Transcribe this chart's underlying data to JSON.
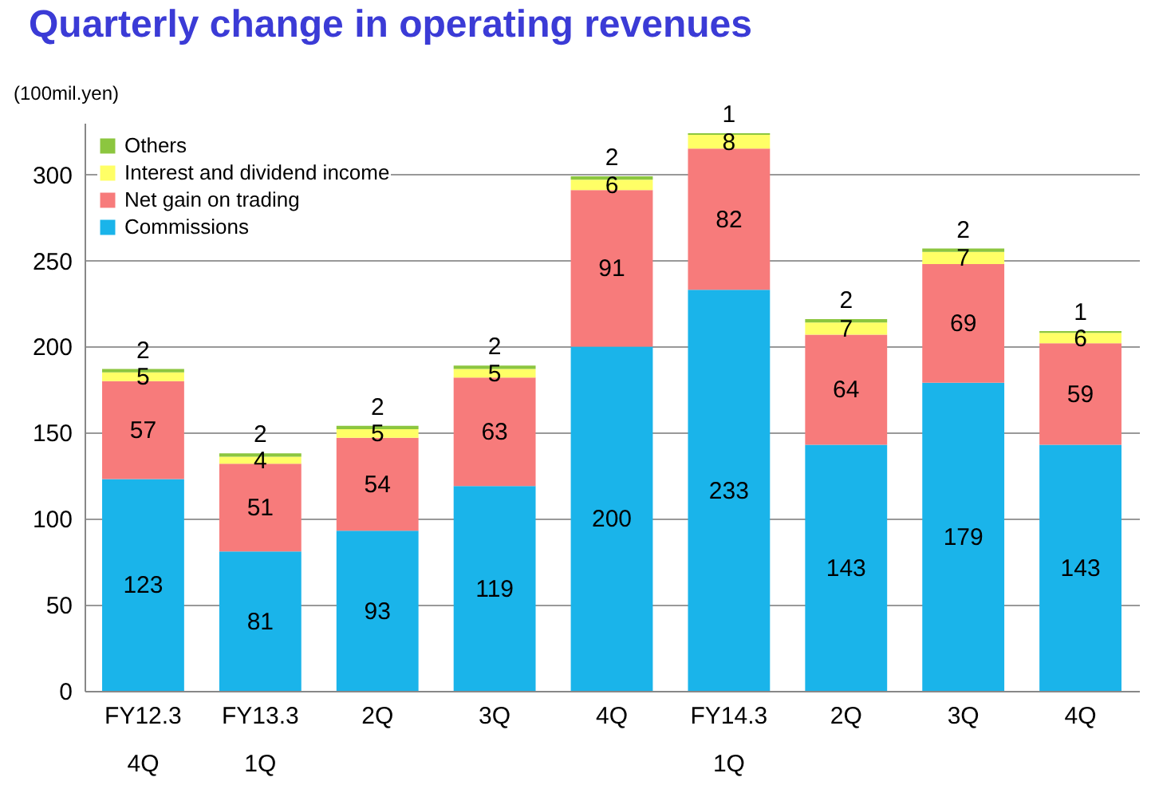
{
  "chart_data": {
    "type": "bar",
    "title": "Quarterly change in operating revenues",
    "ylabel": "(100mil.yen)",
    "categories": [
      "FY12.3\n4Q",
      "FY13.3\n1Q",
      "2Q",
      "3Q",
      "4Q",
      "FY14.3\n1Q",
      "2Q",
      "3Q",
      "4Q"
    ],
    "stacked": true,
    "data_labels": true,
    "grid": "y",
    "legend": "top left",
    "ylim": [
      0,
      330
    ],
    "yticks": [
      0,
      50,
      100,
      150,
      200,
      250,
      300
    ],
    "series": [
      {
        "name": "Commissions",
        "color": "#1ab4ea",
        "values": [
          123,
          81,
          93,
          119,
          200,
          233,
          143,
          179,
          143
        ]
      },
      {
        "name": "Net gain on trading",
        "color": "#f77b7b",
        "values": [
          57,
          51,
          54,
          63,
          91,
          82,
          64,
          69,
          59
        ]
      },
      {
        "name": "Interest and dividend income",
        "color": "#ffff66",
        "values": [
          5,
          4,
          5,
          5,
          6,
          8,
          7,
          7,
          6
        ]
      },
      {
        "name": "Others",
        "color": "#8cc63f",
        "values": [
          2,
          2,
          2,
          2,
          2,
          1,
          2,
          2,
          1
        ]
      }
    ]
  }
}
